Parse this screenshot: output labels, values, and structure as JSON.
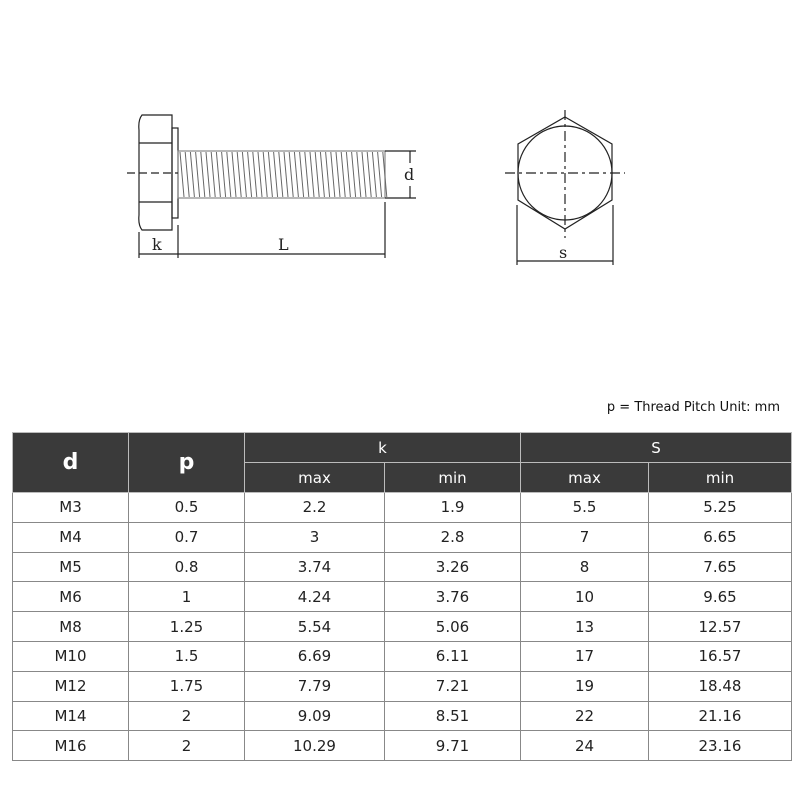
{
  "drawing": {
    "labels": {
      "k": "k",
      "L": "L",
      "d": "d",
      "s": "s"
    }
  },
  "note": "p = Thread Pitch  Unit: mm",
  "table": {
    "headers": {
      "d": "d",
      "p": "p",
      "k": "k",
      "S": "S",
      "k_max": "max",
      "k_min": "min",
      "s_max": "max",
      "s_min": "min"
    },
    "rows": [
      [
        "M3",
        "0.5",
        "2.2",
        "1.9",
        "5.5",
        "5.25"
      ],
      [
        "M4",
        "0.7",
        "3",
        "2.8",
        "7",
        "6.65"
      ],
      [
        "M5",
        "0.8",
        "3.74",
        "3.26",
        "8",
        "7.65"
      ],
      [
        "M6",
        "1",
        "4.24",
        "3.76",
        "10",
        "9.65"
      ],
      [
        "M8",
        "1.25",
        "5.54",
        "5.06",
        "13",
        "12.57"
      ],
      [
        "M10",
        "1.5",
        "6.69",
        "6.11",
        "17",
        "16.57"
      ],
      [
        "M12",
        "1.75",
        "7.79",
        "7.21",
        "19",
        "18.48"
      ],
      [
        "M14",
        "2",
        "9.09",
        "8.51",
        "22",
        "21.16"
      ],
      [
        "M16",
        "2",
        "10.29",
        "9.71",
        "24",
        "23.16"
      ]
    ]
  }
}
